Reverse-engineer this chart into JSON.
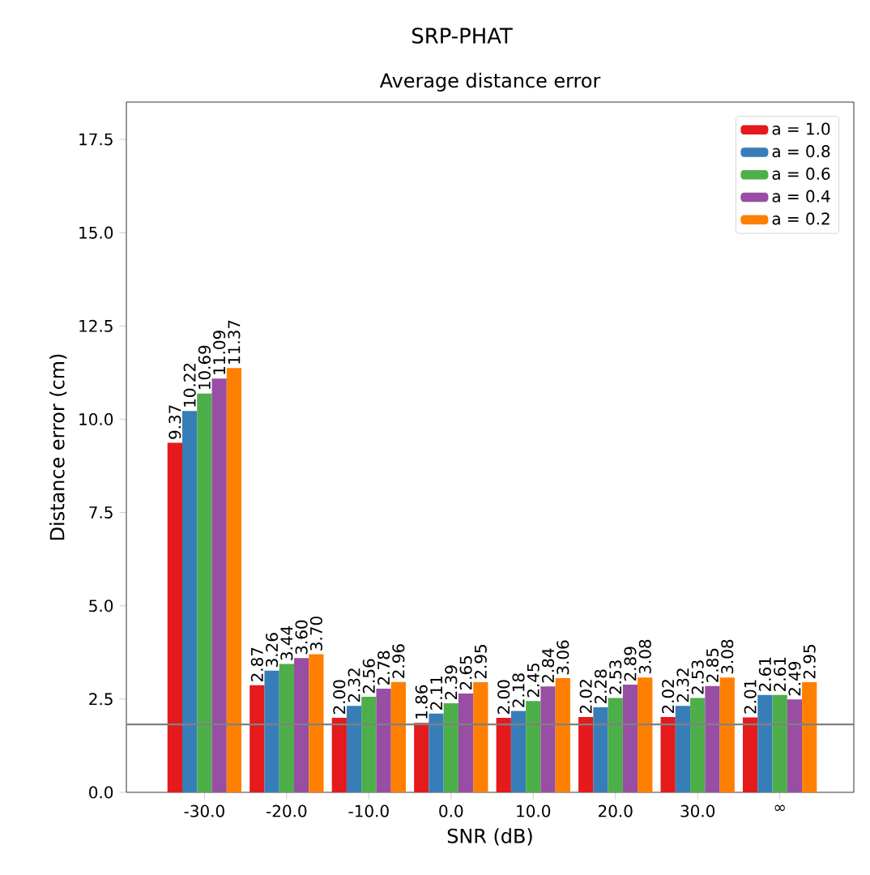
{
  "chart_data": {
    "type": "bar",
    "title": "SRP-PHAT",
    "subtitle": "Average distance error",
    "xlabel": "SNR (dB)",
    "ylabel": "Distance error (cm)",
    "categories": [
      "-30.0",
      "-20.0",
      "-10.0",
      "0.0",
      "10.0",
      "20.0",
      "30.0",
      "∞"
    ],
    "series": [
      {
        "name": "a = 1.0",
        "color": "#e41a1c",
        "values": [
          9.37,
          2.87,
          2.0,
          1.86,
          2.0,
          2.02,
          2.02,
          2.01
        ],
        "value_labels": [
          "9.37",
          "2.87",
          "2.00",
          "1.86",
          "2.00",
          "2.02",
          "2.02",
          "2.01"
        ]
      },
      {
        "name": "a = 0.8",
        "color": "#377eb8",
        "values": [
          10.22,
          3.26,
          2.32,
          2.11,
          2.18,
          2.28,
          2.32,
          2.61
        ],
        "value_labels": [
          "10.22",
          "3.26",
          "2.32",
          "2.11",
          "2.18",
          "2.28",
          "2.32",
          "2.61"
        ]
      },
      {
        "name": "a = 0.6",
        "color": "#4daf4a",
        "values": [
          10.69,
          3.44,
          2.56,
          2.39,
          2.45,
          2.53,
          2.53,
          2.61
        ],
        "value_labels": [
          "10.69",
          "3.44",
          "2.56",
          "2.39",
          "2.45",
          "2.53",
          "2.53",
          "2.61"
        ]
      },
      {
        "name": "a = 0.4",
        "color": "#984ea3",
        "values": [
          11.09,
          3.6,
          2.78,
          2.65,
          2.84,
          2.89,
          2.85,
          2.49
        ],
        "value_labels": [
          "11.09",
          "3.60",
          "2.78",
          "2.65",
          "2.84",
          "2.89",
          "2.85",
          "2.49"
        ]
      },
      {
        "name": "a = 0.2",
        "color": "#ff7f00",
        "values": [
          11.37,
          3.7,
          2.96,
          2.95,
          3.06,
          3.08,
          3.08,
          2.95
        ],
        "value_labels": [
          "11.37",
          "3.70",
          "2.96",
          "2.95",
          "3.06",
          "3.08",
          "3.08",
          "2.95"
        ]
      }
    ],
    "ylim": [
      0,
      18.5
    ],
    "yticks": [
      {
        "value": 0,
        "label": "0.0"
      },
      {
        "value": 2.5,
        "label": "2.5"
      },
      {
        "value": 5,
        "label": "5.0"
      },
      {
        "value": 7.5,
        "label": "7.5"
      },
      {
        "value": 10,
        "label": "10.0"
      },
      {
        "value": 12.5,
        "label": "12.5"
      },
      {
        "value": 15,
        "label": "15.0"
      },
      {
        "value": 17.5,
        "label": "17.5"
      }
    ],
    "ref_lines": [
      {
        "axis": "y",
        "value": 1.82,
        "color": "#808080"
      }
    ],
    "legend": "top right",
    "grid": false
  }
}
